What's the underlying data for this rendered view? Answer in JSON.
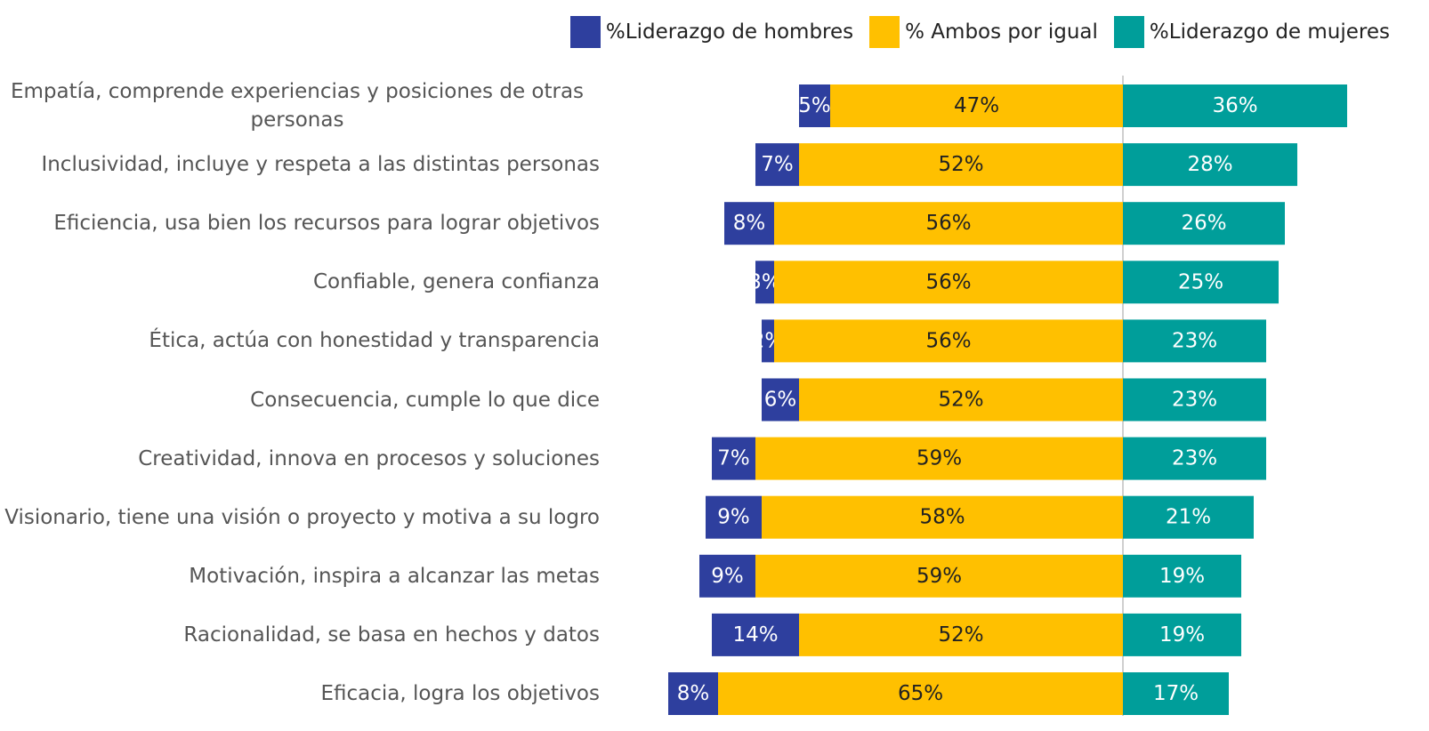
{
  "chart_data": {
    "type": "diverging_bar",
    "categories": [
      "Empatía, comprende experiencias y posiciones de otras personas",
      "Inclusividad, incluye y respeta a las distintas personas",
      "Eficiencia, usa bien los recursos para lograr objetivos",
      "Confiable, genera confianza",
      "Ética, actúa con honestidad y transparencia",
      "Consecuencia, cumple lo que dice",
      "Creatividad, innova en procesos y soluciones",
      "Visionario, tiene una visión o proyecto y motiva a su logro",
      "Motivación, inspira a alcanzar las metas",
      "Racionalidad, se basa en hechos y datos",
      "Eficacia, logra los objetivos"
    ],
    "series": [
      {
        "name": "%Liderazgo de hombres",
        "color": "#2e3f9e",
        "values": [
          5,
          7,
          8,
          3,
          2,
          6,
          7,
          9,
          9,
          14,
          8
        ],
        "value_labels": [
          "5%",
          "7%",
          "8%",
          "3%",
          "2%",
          "6%",
          "7%",
          "9%",
          "9%",
          "14%",
          "8%"
        ]
      },
      {
        "name": "% Ambos por igual",
        "color": "#ffc000",
        "values": [
          47,
          52,
          56,
          56,
          56,
          52,
          59,
          58,
          59,
          52,
          65
        ],
        "value_labels": [
          "47%",
          "52%",
          "56%",
          "56%",
          "56%",
          "52%",
          "59%",
          "58%",
          "59%",
          "52%",
          "65%"
        ]
      },
      {
        "name": "%Liderazgo de mujeres",
        "color": "#009e9a",
        "values": [
          36,
          28,
          26,
          25,
          23,
          23,
          23,
          21,
          19,
          19,
          17
        ],
        "value_labels": [
          "36%",
          "28%",
          "26%",
          "25%",
          "23%",
          "23%",
          "23%",
          "21%",
          "19%",
          "19%",
          "17%"
        ]
      }
    ]
  }
}
